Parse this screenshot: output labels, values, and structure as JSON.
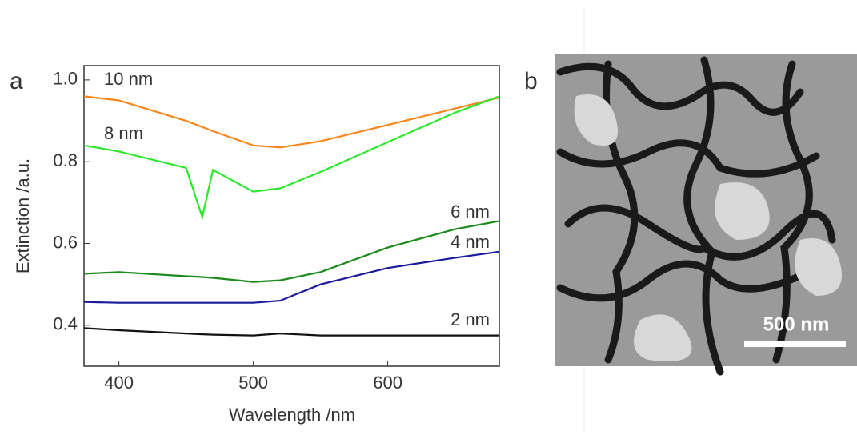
{
  "chart_data": {
    "type": "line",
    "panel_label": "a",
    "x_label": "Wavelength /nm",
    "y_label": "Extinction /a.u.",
    "x": [
      374,
      400,
      450,
      462,
      470,
      500,
      520,
      550,
      600,
      650,
      683
    ],
    "series": [
      {
        "name": "10 nm",
        "color": "#f7861c",
        "values": [
          0.96,
          0.95,
          0.9,
          0.885,
          0.875,
          0.84,
          0.835,
          0.85,
          0.89,
          0.93,
          0.957
        ]
      },
      {
        "name": "8 nm",
        "color": "#2ee62e",
        "values": [
          0.84,
          0.825,
          0.785,
          0.665,
          0.78,
          0.727,
          0.735,
          0.775,
          0.848,
          0.92,
          0.96
        ]
      },
      {
        "name": "6 nm",
        "color": "#1a8a1a",
        "values": [
          0.526,
          0.53,
          0.52,
          0.518,
          0.516,
          0.506,
          0.51,
          0.53,
          0.59,
          0.635,
          0.655
        ]
      },
      {
        "name": "4 nm",
        "color": "#1a1a9a",
        "values": [
          0.457,
          0.455,
          0.455,
          0.455,
          0.455,
          0.455,
          0.46,
          0.5,
          0.54,
          0.565,
          0.58
        ]
      },
      {
        "name": "2 nm",
        "color": "#111111",
        "values": [
          0.393,
          0.388,
          0.38,
          0.378,
          0.377,
          0.375,
          0.38,
          0.375,
          0.375,
          0.375,
          0.375
        ]
      }
    ],
    "xlim": [
      374,
      683
    ],
    "xticks": [
      400,
      500,
      600
    ],
    "ylim": [
      0.3,
      1.035
    ],
    "yticks": [
      {
        "value": 0.4,
        "label": "0.4"
      },
      {
        "value": 0.6,
        "label": "0.6"
      },
      {
        "value": 0.8,
        "label": "0.8"
      },
      {
        "value": 1.0,
        "label": "1.0"
      }
    ]
  },
  "image": {
    "panel_label": "b",
    "scale_bar": "500 nm"
  }
}
